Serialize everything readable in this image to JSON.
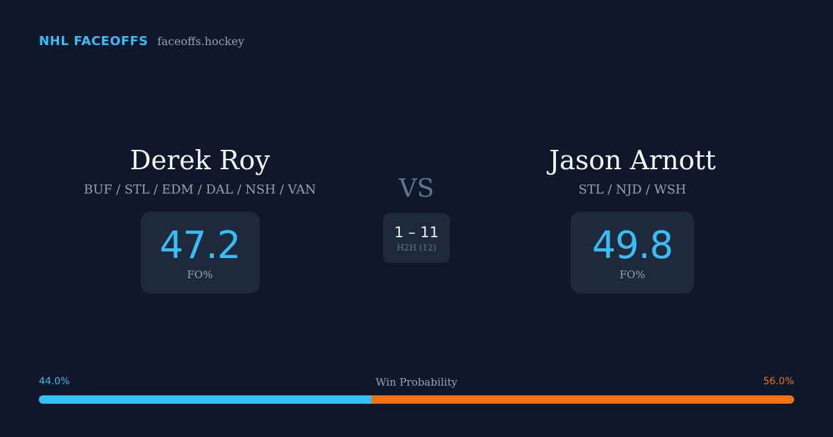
{
  "brand": {
    "name": "NHL FACEOFFS",
    "domain": "faceoffs.hockey"
  },
  "player_left": {
    "name": "Derek Roy",
    "teams": "BUF / STL / EDM / DAL / NSH / VAN",
    "stat_value": "47.2",
    "stat_label": "FO%"
  },
  "player_right": {
    "name": "Jason Arnott",
    "teams": "STL / NJD / WSH",
    "stat_value": "49.8",
    "stat_label": "FO%"
  },
  "matchup": {
    "vs_label": "VS",
    "h2h_score": "1 – 11",
    "h2h_label": "H2H (12)"
  },
  "win_probability": {
    "title": "Win Probability",
    "left_label": "44.0%",
    "right_label": "56.0%",
    "left_fraction": 0.44,
    "right_fraction": 0.56
  },
  "colors": {
    "background": "#0f172a",
    "card": "#1e293b",
    "accent_left": "#38bdf8",
    "accent_right": "#f97316",
    "muted": "#94a3b8"
  }
}
